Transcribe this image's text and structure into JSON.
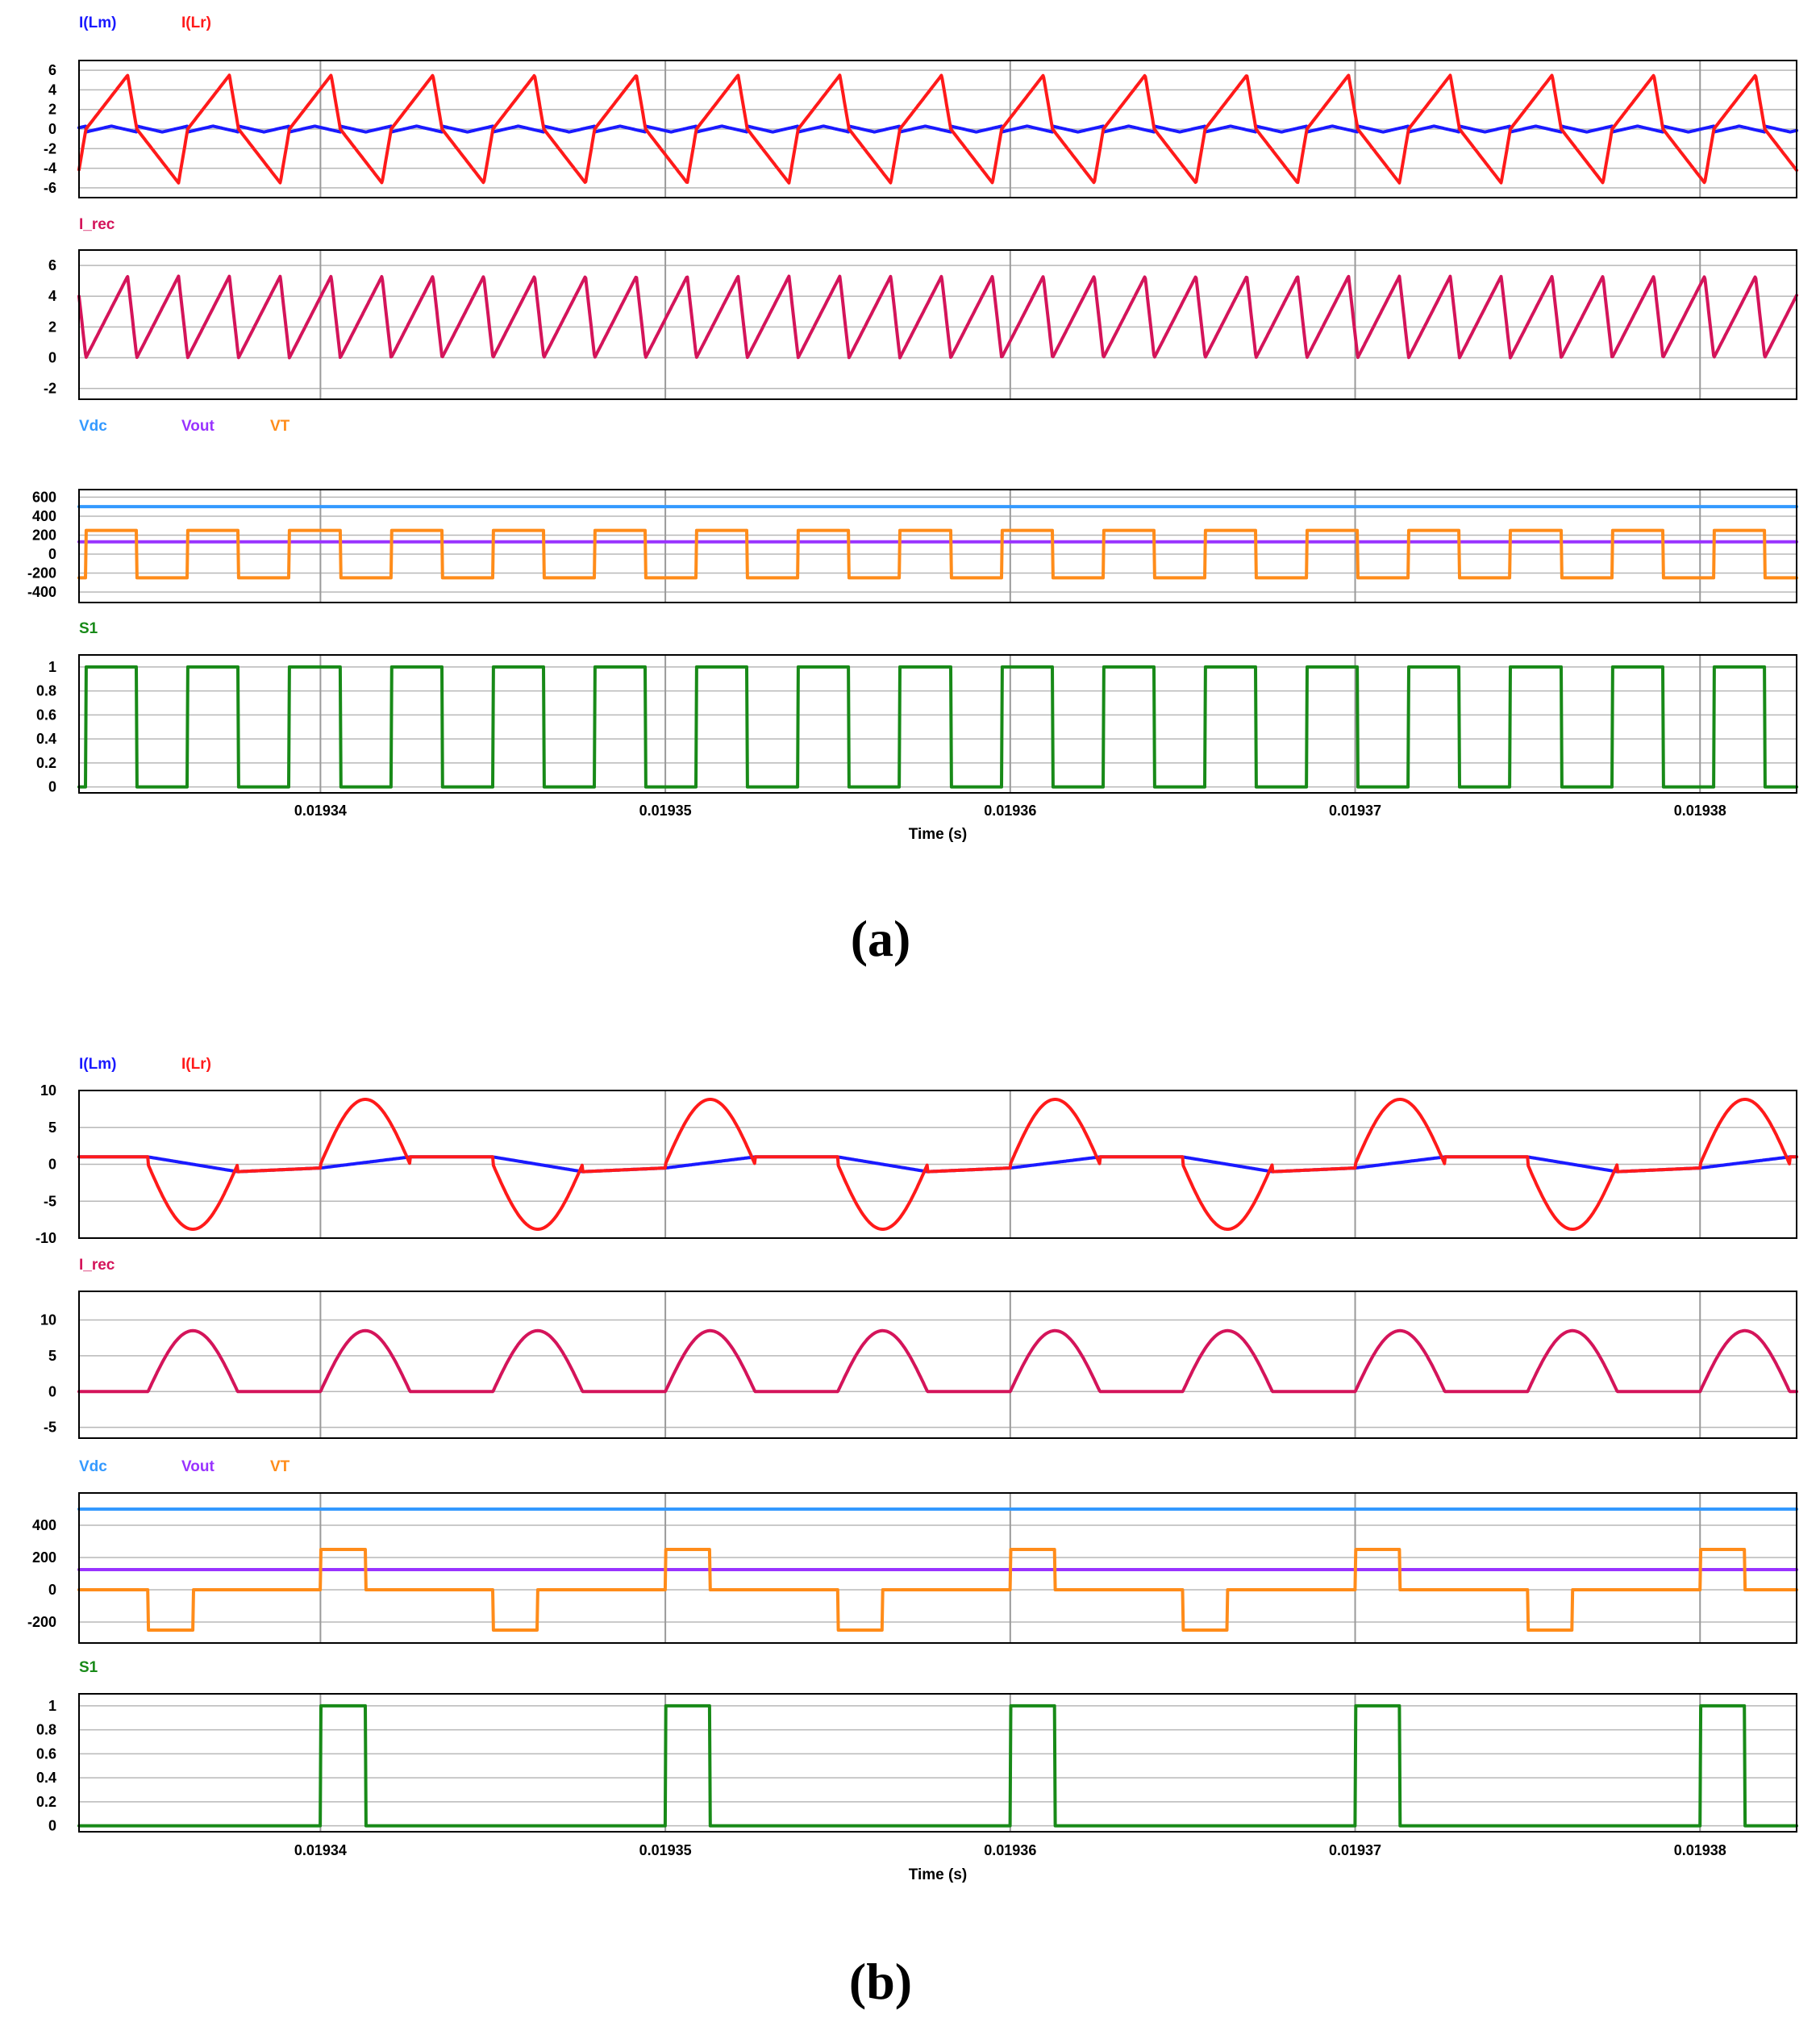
{
  "colors": {
    "ILm": "#1a1aff",
    "ILr": "#ff1a1a",
    "Irec": "#d4145a",
    "Vdc": "#3399ff",
    "Vout": "#9933ff",
    "VT": "#ff8c1a",
    "S1": "#188a18"
  },
  "chart_data": [
    {
      "type": "line",
      "figure": "a",
      "caption": "(a)",
      "xlabel": "Time (s)",
      "xlim": [
        0.019333,
        0.0193828
      ],
      "xticks": [
        0.01934,
        0.01935,
        0.01936,
        0.01937,
        0.01938
      ],
      "xtick_labels": [
        "0.01934",
        "0.01935",
        "0.01936",
        "0.01937",
        "0.01938"
      ],
      "switching_period": 2.95e-06,
      "first_edge": 0.0193332,
      "duty": 0.5,
      "panels": [
        {
          "legend": [
            {
              "name": "I(Lm)",
              "color_key": "ILm"
            },
            {
              "name": "I(Lr)",
              "color_key": "ILr"
            }
          ],
          "ylim": [
            -7,
            7
          ],
          "yticks": [
            6,
            4,
            2,
            0,
            -2,
            -4,
            -6
          ],
          "ytick_labels": [
            "6",
            "4",
            "2",
            "0",
            "-2",
            "-4",
            "-6"
          ],
          "series": [
            {
              "name": "I(Lm)",
              "color_key": "ILm",
              "peak": 0.6
            },
            {
              "name": "I(Lr)",
              "color_key": "ILr",
              "peak": 5.5
            }
          ]
        },
        {
          "legend": [
            {
              "name": "I_rec",
              "color_key": "Irec"
            }
          ],
          "ylim": [
            -2.7,
            7
          ],
          "yticks": [
            6,
            4,
            2,
            0,
            -2
          ],
          "ytick_labels": [
            "6",
            "4",
            "2",
            "0",
            "-2"
          ],
          "series": [
            {
              "name": "I_rec",
              "color_key": "Irec",
              "peak": 5.3
            }
          ]
        },
        {
          "legend": [
            {
              "name": "Vdc",
              "color_key": "Vdc"
            },
            {
              "name": "Vout",
              "color_key": "Vout"
            },
            {
              "name": "VT",
              "color_key": "VT"
            }
          ],
          "ylim": [
            -510,
            680
          ],
          "yticks": [
            600,
            400,
            200,
            0,
            -200,
            -400
          ],
          "ytick_labels": [
            "600",
            "400",
            "200",
            "0",
            "-200",
            "-400"
          ],
          "series": [
            {
              "name": "Vdc",
              "color_key": "Vdc",
              "value": 500
            },
            {
              "name": "Vout",
              "color_key": "Vout",
              "value": 130
            },
            {
              "name": "VT",
              "color_key": "VT",
              "high": 250,
              "low": -250
            }
          ]
        },
        {
          "legend": [
            {
              "name": "S1",
              "color_key": "S1"
            }
          ],
          "ylim": [
            -0.05,
            1.1
          ],
          "yticks": [
            1,
            0.8,
            0.6,
            0.4,
            0.2,
            0
          ],
          "ytick_labels": [
            "1",
            "0.8",
            "0.6",
            "0.4",
            "0.2",
            "0"
          ],
          "series": [
            {
              "name": "S1",
              "color_key": "S1",
              "high": 1,
              "low": 0
            }
          ]
        }
      ]
    },
    {
      "type": "line",
      "figure": "b",
      "caption": "(b)",
      "xlabel": "Time (s)",
      "xlim": [
        0.019333,
        0.0193828
      ],
      "xticks": [
        0.01934,
        0.01935,
        0.01936,
        0.01937,
        0.01938
      ],
      "xtick_labels": [
        "0.01934",
        "0.01935",
        "0.01936",
        "0.01937",
        "0.01938"
      ],
      "switching_period": 1e-05,
      "first_edge": 0.01934,
      "on_time": 1.3e-06,
      "panels": [
        {
          "legend": [
            {
              "name": "I(Lm)",
              "color_key": "ILm"
            },
            {
              "name": "I(Lr)",
              "color_key": "ILr"
            }
          ],
          "ylim": [
            -10,
            10
          ],
          "yticks": [
            10,
            5,
            0,
            -5,
            -10
          ],
          "ytick_labels": [
            "10",
            "5",
            "0",
            "-5",
            "-10"
          ],
          "series": [
            {
              "name": "I(Lm)",
              "color_key": "ILm",
              "peak": 1.0
            },
            {
              "name": "I(Lr)",
              "color_key": "ILr",
              "peak": 8.8
            }
          ]
        },
        {
          "legend": [
            {
              "name": "I_rec",
              "color_key": "Irec"
            }
          ],
          "ylim": [
            -6.5,
            14
          ],
          "yticks": [
            10,
            5,
            0,
            -5
          ],
          "ytick_labels": [
            "10",
            "5",
            "0",
            "-5"
          ],
          "series": [
            {
              "name": "I_rec",
              "color_key": "Irec",
              "peak": 8.5
            }
          ]
        },
        {
          "legend": [
            {
              "name": "Vdc",
              "color_key": "Vdc"
            },
            {
              "name": "Vout",
              "color_key": "Vout"
            },
            {
              "name": "VT",
              "color_key": "VT"
            }
          ],
          "ylim": [
            -330,
            600
          ],
          "yticks": [
            400,
            200,
            0,
            -200
          ],
          "ytick_labels": [
            "400",
            "200",
            "0",
            "-200"
          ],
          "series": [
            {
              "name": "Vdc",
              "color_key": "Vdc",
              "value": 500
            },
            {
              "name": "Vout",
              "color_key": "Vout",
              "value": 125
            },
            {
              "name": "VT",
              "color_key": "VT",
              "high": 250,
              "low": -250
            }
          ]
        },
        {
          "legend": [
            {
              "name": "S1",
              "color_key": "S1"
            }
          ],
          "ylim": [
            -0.05,
            1.1
          ],
          "yticks": [
            1,
            0.8,
            0.6,
            0.4,
            0.2,
            0
          ],
          "ytick_labels": [
            "1",
            "0.8",
            "0.6",
            "0.4",
            "0.2",
            "0"
          ],
          "series": [
            {
              "name": "S1",
              "color_key": "S1",
              "high": 1,
              "low": 0
            }
          ]
        }
      ]
    }
  ]
}
